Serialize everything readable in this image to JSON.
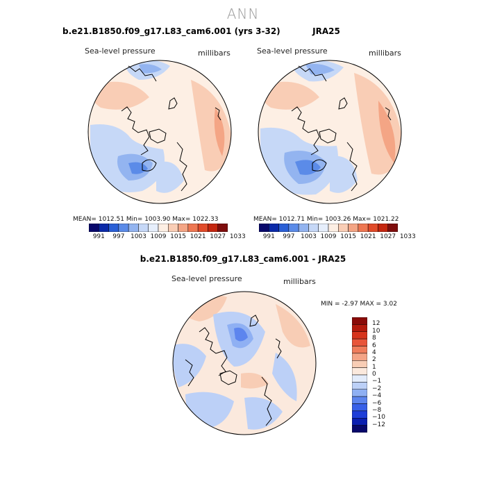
{
  "figure": {
    "main_title": "ANN"
  },
  "panels": [
    {
      "title": "b.e21.B1850.f09_g17.L83_cam6.001 (yrs 3-32)",
      "variable_label": "Sea-level pressure",
      "units_label": "millibars",
      "stats_text": "MEAN= 1012.51   Min= 1003.90   Max= 1022.33"
    },
    {
      "title": "JRA25",
      "variable_label": "Sea-level pressure",
      "units_label": "millibars",
      "stats_text": "MEAN= 1012.71   Min= 1003.26   Max= 1021.22"
    },
    {
      "title": "b.e21.B1850.f09_g17.L83_cam6.001 - JRA25",
      "variable_label": "Sea-level pressure",
      "units_label": "millibars",
      "stats_text": "MIN =   -2.97  MAX =    3.02"
    }
  ],
  "colors": {
    "abs_scale": [
      "#08086b",
      "#0b2aa8",
      "#2a5fd6",
      "#5b8be8",
      "#93b4f0",
      "#c6d8f7",
      "#e6eefb",
      "#fdefe4",
      "#f9cdb5",
      "#f4a585",
      "#ee7752",
      "#e14b2a",
      "#c4260f",
      "#7e0d0d"
    ],
    "diff_scale": [
      "#08086b",
      "#0b1fb0",
      "#1e3ed8",
      "#3860e8",
      "#5d85ee",
      "#8fb0f3",
      "#bcd0f7",
      "#e3ecfb",
      "#fbe9dd",
      "#f8cdb5",
      "#f4a486",
      "#ef7c5b",
      "#e8553a",
      "#d6341c",
      "#b41a0c",
      "#8a0b08"
    ]
  },
  "chart_data": [
    {
      "type": "heatmap",
      "title": "b.e21.B1850.f09_g17.L83_cam6.001 (yrs 3-32)",
      "projection": "north-polar-stereographic",
      "variable": "Sea-level pressure",
      "units": "millibars",
      "mean": 1012.51,
      "min": 1003.9,
      "max": 1022.33,
      "colorbar_ticks": [
        "991",
        "997",
        "1003",
        "1009",
        "1015",
        "1021",
        "1027",
        "1033"
      ],
      "legend": "bottom"
    },
    {
      "type": "heatmap",
      "title": "JRA25",
      "projection": "north-polar-stereographic",
      "variable": "Sea-level pressure",
      "units": "millibars",
      "mean": 1012.71,
      "min": 1003.26,
      "max": 1021.22,
      "colorbar_ticks": [
        "991",
        "997",
        "1003",
        "1009",
        "1015",
        "1021",
        "1027",
        "1033"
      ],
      "legend": "bottom"
    },
    {
      "type": "heatmap",
      "title": "b.e21.B1850.f09_g17.L83_cam6.001 - JRA25",
      "projection": "north-polar-stereographic",
      "variable": "Sea-level pressure",
      "units": "millibars",
      "min": -2.97,
      "max": 3.02,
      "colorbar_ticks": [
        "12",
        "10",
        "8",
        "6",
        "4",
        "2",
        "1",
        "0",
        "−1",
        "−2",
        "−4",
        "−6",
        "−8",
        "−10",
        "−12"
      ],
      "legend": "right"
    }
  ]
}
